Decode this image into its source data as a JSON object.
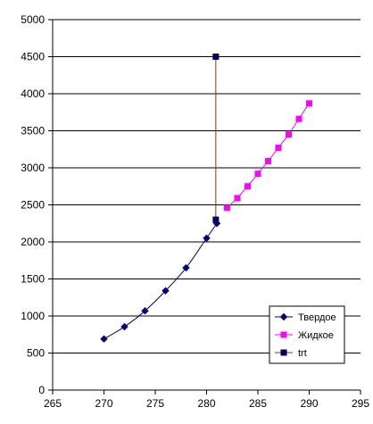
{
  "chart_data": {
    "type": "scatter",
    "title": "",
    "xlabel": "",
    "ylabel": "",
    "xlim": [
      265,
      295
    ],
    "ylim": [
      0,
      5000
    ],
    "x_ticks": [
      265,
      270,
      275,
      280,
      285,
      290,
      295
    ],
    "y_ticks": [
      0,
      500,
      1000,
      1500,
      2000,
      2500,
      3000,
      3500,
      4000,
      4500,
      5000
    ],
    "x_tick_labels": [
      "265",
      "270",
      "275",
      "280",
      "285",
      "290",
      "295"
    ],
    "y_tick_labels": [
      "0",
      "500",
      "1000",
      "1500",
      "2000",
      "2500",
      "3000",
      "3500",
      "4000",
      "4500",
      "5000"
    ],
    "grid": "horizontal",
    "legend_position": "bottom-right",
    "series": [
      {
        "name": "Твердое",
        "color": "#000080",
        "marker": "diamond",
        "x": [
          270,
          272,
          274,
          276,
          278,
          280,
          281
        ],
        "y": [
          690,
          855,
          1070,
          1340,
          1650,
          2050,
          2250
        ]
      },
      {
        "name": "Жидкое",
        "color": "#ff00ff",
        "marker": "square",
        "x": [
          282,
          283,
          284,
          285,
          286,
          287,
          288,
          289,
          290
        ],
        "y": [
          2460,
          2590,
          2750,
          2920,
          3090,
          3270,
          3450,
          3660,
          3870
        ]
      },
      {
        "name": "trt",
        "color": "#000066",
        "line_color": "#993300",
        "marker": "square",
        "x": [
          280.9,
          280.9
        ],
        "y": [
          2300,
          4500
        ]
      }
    ]
  }
}
